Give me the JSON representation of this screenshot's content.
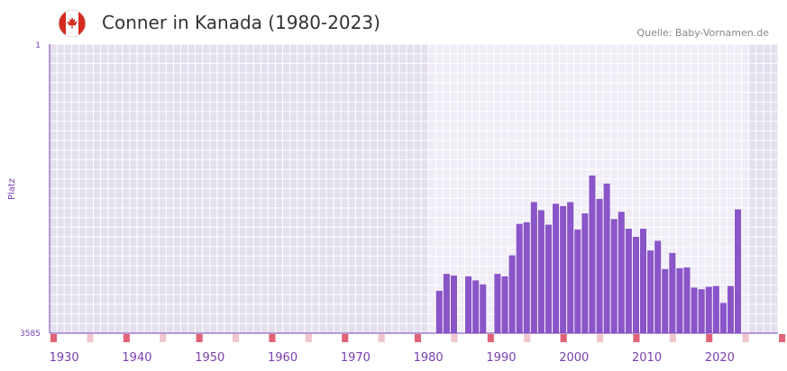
{
  "header": {
    "title": "Conner in Kanada (1980-2023)",
    "source": "Quelle: Baby-Vornamen.de"
  },
  "colors": {
    "bar": "#8a55c8",
    "bg_outside": "#e4e0ee",
    "bg_inside": "#f0edf7",
    "grid": "#ffffff",
    "axis": "#7a3fb0",
    "tick_text": "#7a3fb0",
    "marker_strong": "#e06377",
    "marker_light": "#f0c6cc",
    "flag_red": "#d52b1e"
  },
  "chart_data": {
    "type": "bar",
    "title": "Conner in Kanada (1980-2023)",
    "xlabel": "",
    "ylabel": "Platz",
    "y_axis_reversed": true,
    "ylim": [
      1,
      3585
    ],
    "y_tick_labels": [
      "1",
      "3585"
    ],
    "x_tick_labels": [
      "1930",
      "1940",
      "1950",
      "1960",
      "1970",
      "1980",
      "1990",
      "2000",
      "2010",
      "2020"
    ],
    "xlim": [
      1928,
      2028
    ],
    "highlight_range": [
      1980,
      2023
    ],
    "series": [
      {
        "name": "Platz",
        "x": [
          1980,
          1981,
          1982,
          1983,
          1984,
          1985,
          1986,
          1987,
          1988,
          1989,
          1990,
          1991,
          1992,
          1993,
          1994,
          1995,
          1996,
          1997,
          1998,
          1999,
          2000,
          2001,
          2002,
          2003,
          2004,
          2005,
          2006,
          2007,
          2008,
          2009,
          2010,
          2011,
          2012,
          2013,
          2014,
          2015,
          2016,
          2017,
          2018,
          2019,
          2020,
          2021,
          2022,
          2023
        ],
        "values": [
          null,
          3060,
          2850,
          2870,
          null,
          2880,
          2930,
          2980,
          null,
          2850,
          2880,
          2620,
          2230,
          2210,
          1960,
          2060,
          2240,
          1980,
          2010,
          1960,
          2300,
          2100,
          1630,
          1920,
          1730,
          2170,
          2080,
          2290,
          2390,
          2290,
          2560,
          2440,
          2790,
          2590,
          2780,
          2770,
          3020,
          3040,
          3010,
          3000,
          3210,
          3000,
          2050,
          null
        ]
      }
    ]
  }
}
